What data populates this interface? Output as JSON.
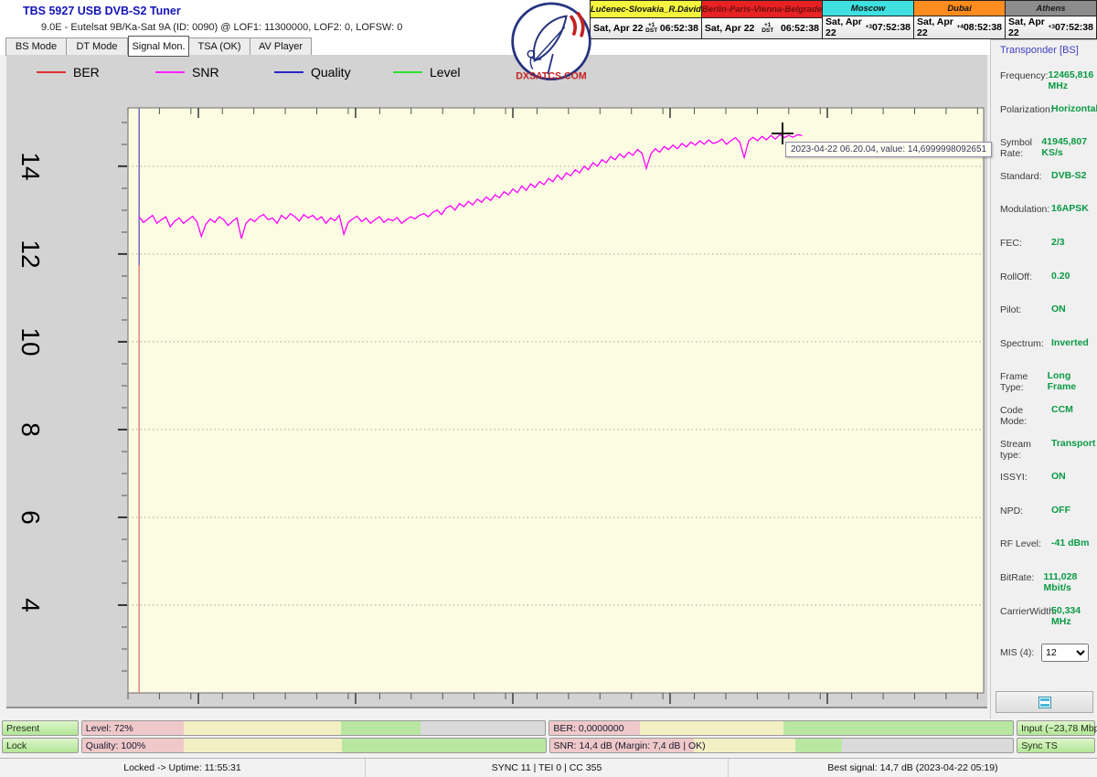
{
  "window": {
    "title": "TBS 5927 USB DVB-S2 Tuner",
    "subtitle": "9.0E - Eutelsat 9B/Ka-Sat 9A (ID: 0090) @ LOF1: 11300000, LOF2: 0, LOFSW: 0"
  },
  "logo": {
    "text": "DXSATCS.COM"
  },
  "tabs": [
    {
      "label": "BS Mode",
      "active": false
    },
    {
      "label": "DT Mode",
      "active": false
    },
    {
      "label": "Signal Mon.",
      "active": true
    },
    {
      "label": "TSA (OK)",
      "active": false
    },
    {
      "label": "AV Player",
      "active": false
    }
  ],
  "clocks": [
    {
      "name": "Lučenec-Slovakia_R.Dávid",
      "bg": "#f5f53e",
      "fg": "#111111",
      "date": "Sat, Apr 22",
      "off_top": "+1",
      "off_bottom": "DST",
      "time": "06:52:38"
    },
    {
      "name": "Berlin-Paris-Vienna-Belgrade",
      "bg": "#e82222",
      "fg": "#6d0f0f",
      "date": "Sat, Apr 22",
      "off_top": "+1",
      "off_bottom": "DST",
      "time": "06:52:38"
    },
    {
      "name": "Moscow",
      "bg": "#3fe0e0",
      "fg": "#111111",
      "date": "Sat, Apr 22",
      "off_top": "+3",
      "off_bottom": "",
      "time": "07:52:38"
    },
    {
      "name": "Dubai",
      "bg": "#ff8c1e",
      "fg": "#111111",
      "date": "Sat, Apr 22",
      "off_top": "+4",
      "off_bottom": "",
      "time": "08:52:38"
    },
    {
      "name": "Athens",
      "bg": "#8c8c8c",
      "fg": "#1a1a1a",
      "date": "Sat, Apr 22",
      "off_top": "+3",
      "off_bottom": "",
      "time": "07:52:38"
    }
  ],
  "legend": [
    {
      "label": "BER",
      "color": "#e03030"
    },
    {
      "label": "SNR",
      "color": "#ff22ff"
    },
    {
      "label": "Quality",
      "color": "#2828c8"
    },
    {
      "label": "Level",
      "color": "#30e030"
    }
  ],
  "chart_data": {
    "type": "line",
    "title": "",
    "xlabel": "",
    "ylabel": "",
    "ylim": [
      2,
      15.33
    ],
    "ytick_values": [
      4,
      6,
      8,
      10,
      12,
      14
    ],
    "grid": "horizontal-dotted",
    "legend_position": "top-left",
    "plot_bg": "#fcfce2",
    "series": [
      {
        "name": "SNR",
        "unit": "dB",
        "color": "#ff00ff",
        "x_start": 0.013,
        "x_step": 0.0052,
        "values": [
          12.85,
          12.72,
          12.8,
          12.88,
          12.7,
          12.78,
          12.85,
          12.62,
          12.75,
          12.82,
          12.7,
          12.78,
          12.86,
          12.74,
          12.4,
          12.68,
          12.8,
          12.72,
          12.85,
          12.78,
          12.65,
          12.75,
          12.82,
          12.35,
          12.7,
          12.8,
          12.74,
          12.85,
          12.9,
          12.78,
          12.82,
          12.7,
          12.88,
          12.8,
          12.92,
          12.85,
          12.75,
          12.9,
          12.82,
          12.88,
          12.78,
          12.85,
          12.7,
          12.82,
          12.76,
          12.88,
          12.45,
          12.72,
          12.8,
          12.86,
          12.74,
          12.82,
          12.7,
          12.78,
          12.85,
          12.72,
          12.8,
          12.76,
          12.83,
          12.7,
          12.78,
          12.85,
          12.8,
          12.88,
          12.92,
          12.85,
          12.95,
          13.0,
          12.9,
          13.05,
          13.1,
          13.0,
          13.15,
          13.08,
          13.2,
          13.12,
          13.25,
          13.18,
          13.3,
          13.22,
          13.35,
          13.28,
          13.42,
          13.35,
          13.48,
          13.4,
          13.55,
          13.45,
          13.6,
          13.52,
          13.65,
          13.58,
          13.72,
          13.65,
          13.8,
          13.7,
          13.85,
          13.78,
          13.92,
          13.85,
          14.0,
          13.92,
          14.08,
          14.0,
          14.15,
          14.08,
          14.22,
          14.15,
          14.28,
          14.2,
          14.32,
          14.25,
          14.38,
          14.3,
          13.95,
          14.28,
          14.4,
          14.32,
          14.45,
          14.38,
          14.48,
          14.4,
          14.52,
          14.44,
          14.55,
          14.48,
          14.58,
          14.5,
          14.6,
          14.52,
          14.55,
          14.62,
          14.5,
          14.58,
          14.65,
          14.55,
          14.2,
          14.58,
          14.66,
          14.58,
          14.68,
          14.6,
          14.7,
          14.62,
          14.72,
          14.65,
          14.7,
          14.66,
          14.72,
          14.7
        ]
      },
      {
        "name": "Quality",
        "color": "#6a6ad0",
        "event_x": 0.013,
        "note": "vertical line at lock start, upper part"
      },
      {
        "name": "BER",
        "color": "#e07878",
        "event_x": 0.013,
        "note": "vertical line at lock start, full height"
      },
      {
        "name": "Level",
        "color": "#30e030",
        "values": []
      }
    ],
    "cursor": {
      "x_frac": 0.765,
      "tooltip": "2023-04-22 06.20.04, value: 14,6999998092651"
    }
  },
  "tooltip": {
    "text": "2023-04-22 06.20.04, value: 14,6999998092651"
  },
  "sidebar": {
    "title": "Transponder [BS]",
    "rows": [
      {
        "label": "Frequency:",
        "value": "12465,816 MHz"
      },
      {
        "label": "Polarization:",
        "value": "Horizontal"
      },
      {
        "label": "Symbol Rate:",
        "value": "41945,807 KS/s"
      },
      {
        "label": "Standard:",
        "value": "DVB-S2"
      },
      {
        "label": "Modulation:",
        "value": "16APSK"
      },
      {
        "label": "FEC:",
        "value": "2/3"
      },
      {
        "label": "RollOff:",
        "value": "0.20"
      },
      {
        "label": "Pilot:",
        "value": "ON"
      },
      {
        "label": "Spectrum:",
        "value": "Inverted"
      },
      {
        "label": "Frame Type:",
        "value": "Long Frame"
      },
      {
        "label": "Code Mode:",
        "value": "CCM"
      },
      {
        "label": "Stream type:",
        "value": "Transport"
      },
      {
        "label": "ISSYI:",
        "value": "ON"
      },
      {
        "label": "NPD:",
        "value": "OFF"
      },
      {
        "label": "RF Level:",
        "value": "-41 dBm"
      },
      {
        "label": "BitRate:",
        "value": "111,028 Mbit/s"
      },
      {
        "label": "CarrierWidth:",
        "value": "50,334 MHz"
      }
    ],
    "mis": {
      "label": "MIS (4):",
      "value": "12"
    }
  },
  "bottom": {
    "zone_colors": {
      "low": "#efc9c9",
      "mid": "#f3efc4",
      "high": "#b9e7a2"
    },
    "badges": {
      "present": "Present",
      "lock": "Lock",
      "input": "Input (~23,78 Mbps)",
      "sync_ts": "Sync TS"
    },
    "bars": [
      {
        "id": "level-bar",
        "label": "Level: 72%",
        "zones": [
          [
            0.22,
            "#efc9c9"
          ],
          [
            0.56,
            "#f3efc4"
          ],
          [
            0.73,
            "#b9e7a2"
          ]
        ]
      },
      {
        "id": "ber-bar",
        "label": "BER: 0,0000000",
        "zones": [
          [
            0.195,
            "#efc9c9"
          ],
          [
            0.505,
            "#f3efc4"
          ],
          [
            1.0,
            "#b9e7a2"
          ]
        ]
      },
      {
        "id": "quality-bar",
        "label": "Quality: 100%",
        "zones": [
          [
            0.22,
            "#efc9c9"
          ],
          [
            0.56,
            "#f3efc4"
          ],
          [
            1.0,
            "#b9e7a2"
          ]
        ]
      },
      {
        "id": "snr-bar",
        "label": "SNR: 14,4 dB (Margin: 7,4 dB | OK)",
        "zones": [
          [
            0.31,
            "#efc9c9"
          ],
          [
            0.53,
            "#f3efc4"
          ],
          [
            0.63,
            "#b9e7a2"
          ]
        ]
      }
    ]
  },
  "statusbar": {
    "uptime": "Locked -> Uptime: 11:55:31",
    "sync": "SYNC 11 | TEI 0 | CC 355",
    "best": "Best signal: 14,7 dB (2023-04-22 05:19)"
  }
}
